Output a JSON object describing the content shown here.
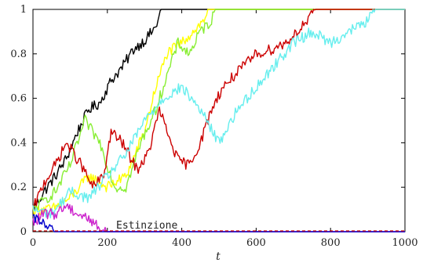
{
  "chart_data": {
    "type": "line",
    "xlabel": "t",
    "ylabel": "",
    "xlim": [
      0,
      1000
    ],
    "ylim": [
      0,
      1
    ],
    "xticks": [
      0,
      200,
      400,
      600,
      800,
      1000
    ],
    "yticks": [
      0,
      0.2,
      0.4,
      0.6,
      0.8,
      1
    ],
    "xtick_labels": [
      "0",
      "200",
      "400",
      "600",
      "800",
      "1000"
    ],
    "ytick_labels": [
      "0",
      "0.2",
      "0.4",
      "0.6",
      "0.8",
      "1"
    ],
    "grid": false,
    "annotations": [
      {
        "text": "Estinzione",
        "x": 200,
        "y": 0.02
      }
    ],
    "series": [
      {
        "color": "#000000",
        "x": [
          0,
          30,
          60,
          90,
          120,
          150,
          180,
          210,
          240,
          270,
          300,
          330,
          345,
          360,
          1000
        ],
        "y": [
          0.1,
          0.18,
          0.25,
          0.33,
          0.45,
          0.55,
          0.58,
          0.68,
          0.74,
          0.82,
          0.86,
          0.92,
          1.0,
          1.0,
          1.0
        ]
      },
      {
        "color": "#ffff00",
        "x": [
          0,
          50,
          100,
          150,
          200,
          250,
          300,
          330,
          360,
          400,
          430,
          460,
          470,
          480,
          1000
        ],
        "y": [
          0.1,
          0.1,
          0.15,
          0.25,
          0.2,
          0.25,
          0.45,
          0.65,
          0.8,
          0.85,
          0.9,
          0.95,
          1.0,
          1.0,
          1.0
        ]
      },
      {
        "color": "#88ee33",
        "x": [
          0,
          60,
          100,
          140,
          180,
          220,
          250,
          290,
          330,
          360,
          390,
          420,
          450,
          480,
          490,
          500,
          1000
        ],
        "y": [
          0.1,
          0.18,
          0.3,
          0.5,
          0.4,
          0.2,
          0.2,
          0.4,
          0.55,
          0.7,
          0.85,
          0.8,
          0.9,
          0.95,
          1.0,
          1.0,
          1.0
        ]
      },
      {
        "color": "#cc0000",
        "x": [
          0,
          30,
          60,
          90,
          130,
          160,
          190,
          210,
          240,
          280,
          310,
          340,
          360,
          390,
          420,
          450,
          480,
          510,
          540,
          570,
          600,
          640,
          680,
          710,
          740,
          760,
          1000
        ],
        "y": [
          0.1,
          0.22,
          0.3,
          0.4,
          0.3,
          0.2,
          0.25,
          0.45,
          0.4,
          0.28,
          0.35,
          0.55,
          0.45,
          0.32,
          0.3,
          0.4,
          0.55,
          0.65,
          0.7,
          0.75,
          0.8,
          0.82,
          0.85,
          0.9,
          0.95,
          1.0,
          1.0
        ]
      },
      {
        "color": "#66eeee",
        "x": [
          0,
          50,
          100,
          150,
          200,
          250,
          300,
          350,
          400,
          450,
          500,
          550,
          600,
          650,
          700,
          750,
          800,
          850,
          900,
          920,
          1000
        ],
        "y": [
          0.1,
          0.08,
          0.18,
          0.15,
          0.25,
          0.35,
          0.5,
          0.6,
          0.65,
          0.55,
          0.4,
          0.55,
          0.65,
          0.75,
          0.85,
          0.9,
          0.85,
          0.9,
          0.95,
          1.0,
          1.0
        ]
      },
      {
        "color": "#cc22cc",
        "x": [
          0,
          30,
          60,
          90,
          120,
          150,
          170,
          185,
          200,
          1000
        ],
        "y": [
          0.04,
          0.08,
          0.08,
          0.12,
          0.08,
          0.06,
          0.03,
          0.01,
          0.0,
          0.0
        ]
      },
      {
        "color": "#0000cc",
        "x": [
          0,
          15,
          30,
          45,
          60,
          1000
        ],
        "y": [
          0.05,
          0.06,
          0.03,
          0.01,
          0.0,
          0.0
        ]
      }
    ]
  }
}
